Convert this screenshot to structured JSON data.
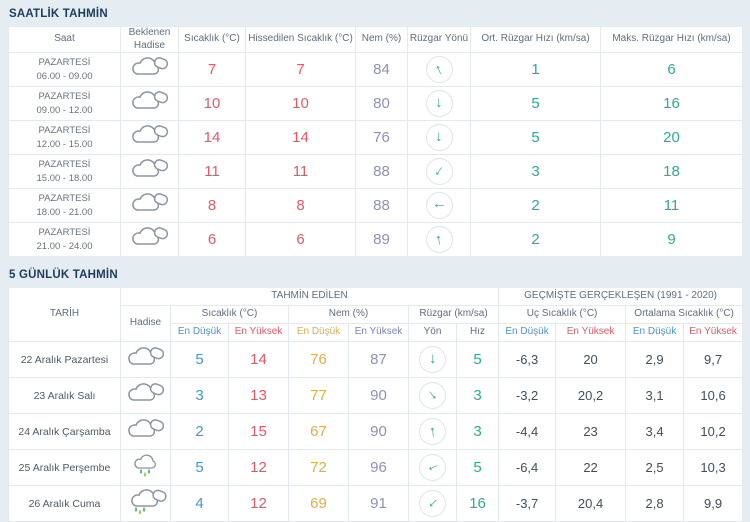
{
  "colors": {
    "background": "#e6edf2",
    "title_navy": "#1d3c5c",
    "temp_red": "#e0596a",
    "min_blue": "#4896ca",
    "humidity_purple": "#8d92b5",
    "humidity_min_yellow": "#dcaf49",
    "wind_teal": "#2fa899",
    "history_gray": "#414e5b"
  },
  "icons": {
    "wind_arrow": "↑"
  },
  "hourly": {
    "title": "SAATLİK TAHMİN",
    "columns": [
      "Saat",
      "Beklenen Hadise",
      "Sıcaklık (°C)",
      "Hissedilen Sıcaklık (°C)",
      "Nem (%)",
      "Rüzgar Yönü",
      "Ort. Rüzgar Hızı (km/sa)",
      "Maks. Rüzgar Hızı (km/sa)"
    ],
    "rows": [
      {
        "day": "PAZARTESİ",
        "time": "06.00 - 09.00",
        "icon": "cloudy",
        "temp": "7",
        "feels": "7",
        "humidity": "84",
        "wind_dir_deg": -22,
        "wind_avg": "1",
        "wind_max": "6"
      },
      {
        "day": "PAZARTESİ",
        "time": "09.00 - 12.00",
        "icon": "cloudy",
        "temp": "10",
        "feels": "10",
        "humidity": "80",
        "wind_dir_deg": 178,
        "wind_avg": "5",
        "wind_max": "16"
      },
      {
        "day": "PAZARTESİ",
        "time": "12.00 - 15.00",
        "icon": "cloudy",
        "temp": "14",
        "feels": "14",
        "humidity": "76",
        "wind_dir_deg": 180,
        "wind_avg": "5",
        "wind_max": "20"
      },
      {
        "day": "PAZARTESİ",
        "time": "15.00 - 18.00",
        "icon": "cloudy",
        "temp": "11",
        "feels": "11",
        "humidity": "88",
        "wind_dir_deg": 215,
        "wind_avg": "3",
        "wind_max": "18"
      },
      {
        "day": "PAZARTESİ",
        "time": "18.00 - 21.00",
        "icon": "cloudy",
        "temp": "8",
        "feels": "8",
        "humidity": "88",
        "wind_dir_deg": 270,
        "wind_avg": "2",
        "wind_max": "11"
      },
      {
        "day": "PAZARTESİ",
        "time": "21.00 - 24.00",
        "icon": "cloudy",
        "temp": "6",
        "feels": "6",
        "humidity": "89",
        "wind_dir_deg": -10,
        "wind_avg": "2",
        "wind_max": "9"
      }
    ]
  },
  "daily": {
    "title": "5 GÜNLÜK TAHMİN",
    "header": {
      "date": "TARİH",
      "event": "Hadise",
      "forecast_group": "TAHMİN EDİLEN",
      "history_group": "GEÇMİŞTE GERÇEKLEŞEN (1991 - 2020)",
      "temp_group": "Sıcaklık (°C)",
      "humidity_group": "Nem (%)",
      "wind_group": "Rüzgar (km/sa)",
      "extreme_group": "Uç Sıcaklık (°C)",
      "avg_group": "Ortalama Sıcaklık (°C)",
      "min": "En Düşük",
      "max": "En Yüksek",
      "dir": "Yön",
      "speed": "Hız"
    },
    "rows": [
      {
        "date": "22 Aralık Pazartesi",
        "icon": "cloudy",
        "tmin": "5",
        "tmax": "14",
        "hmin": "76",
        "hmax": "87",
        "wind_dir_deg": 180,
        "wind_speed": "5",
        "ext_min": "-6,3",
        "ext_max": "20",
        "avg_min": "2,9",
        "avg_max": "9,7"
      },
      {
        "date": "23 Aralık Salı",
        "icon": "cloudy",
        "tmin": "3",
        "tmax": "13",
        "hmin": "77",
        "hmax": "90",
        "wind_dir_deg": 140,
        "wind_speed": "3",
        "ext_min": "-3,2",
        "ext_max": "20,2",
        "avg_min": "3,1",
        "avg_max": "10,6"
      },
      {
        "date": "24 Aralık Çarşamba",
        "icon": "cloudy",
        "tmin": "2",
        "tmax": "15",
        "hmin": "67",
        "hmax": "90",
        "wind_dir_deg": -8,
        "wind_speed": "3",
        "ext_min": "-4,4",
        "ext_max": "23",
        "avg_min": "3,4",
        "avg_max": "10,2"
      },
      {
        "date": "25 Aralık Perşembe",
        "icon": "rain",
        "tmin": "5",
        "tmax": "12",
        "hmin": "72",
        "hmax": "96",
        "wind_dir_deg": 247,
        "wind_speed": "5",
        "ext_min": "-6,4",
        "ext_max": "22",
        "avg_min": "2,5",
        "avg_max": "10,3"
      },
      {
        "date": "26 Aralık Cuma",
        "icon": "rain2",
        "tmin": "4",
        "tmax": "12",
        "hmin": "69",
        "hmax": "91",
        "wind_dir_deg": 225,
        "wind_speed": "16",
        "ext_min": "-3,7",
        "ext_max": "20,4",
        "avg_min": "2,8",
        "avg_max": "9,9"
      }
    ]
  }
}
